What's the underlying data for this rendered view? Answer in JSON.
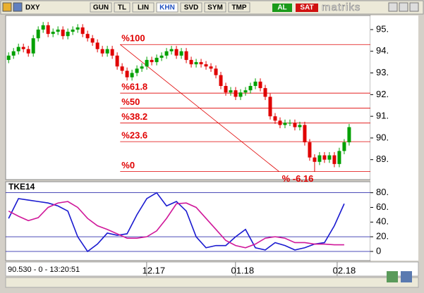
{
  "ui": {
    "symbol": "DXY",
    "buttons": [
      "GUN",
      "TL",
      "LIN",
      "KHN",
      "SVD",
      "SYM",
      "TMP"
    ],
    "buy": "AL",
    "sell": "SAT",
    "logo": "matriks",
    "status": "90.530 - 0 - 13:20:51"
  },
  "chart_data": [
    {
      "type": "candlestick",
      "up_color": "#00a000",
      "down_color": "#e00000",
      "xlim": [
        -0.6,
        73.3
      ],
      "ylim": [
        88.08,
        95.65
      ],
      "yticks": [
        {
          "value": 95,
          "label": "95."
        },
        {
          "value": 94,
          "label": "94."
        },
        {
          "value": 93,
          "label": "93."
        },
        {
          "value": 92,
          "label": "92."
        },
        {
          "value": 91,
          "label": "91."
        },
        {
          "value": 90,
          "label": "90."
        },
        {
          "value": 89,
          "label": "89."
        }
      ],
      "open": [
        93.6,
        93.8,
        94.0,
        94.2,
        94.1,
        93.9,
        94.6,
        95.0,
        95.2,
        94.8,
        94.9,
        95.0,
        94.7,
        94.9,
        95.0,
        95.1,
        94.8,
        94.6,
        94.4,
        94.1,
        93.9,
        94.1,
        93.8,
        93.3,
        93.1,
        92.8,
        93.0,
        93.2,
        93.3,
        93.6,
        93.5,
        93.7,
        93.8,
        94.0,
        94.1,
        93.8,
        94.0,
        93.6,
        93.4,
        93.5,
        93.4,
        93.3,
        93.2,
        92.9,
        92.4,
        92.1,
        92.2,
        91.9,
        92.1,
        92.2,
        92.4,
        92.6,
        92.3,
        91.9,
        91.0,
        90.8,
        90.6,
        90.7,
        90.7,
        90.5,
        90.6,
        89.8,
        89.1,
        88.9,
        89.2,
        89.0,
        89.2,
        88.8,
        89.4,
        89.8
      ],
      "high": [
        93.95,
        94.15,
        94.35,
        94.35,
        94.25,
        94.75,
        95.15,
        95.35,
        95.35,
        95.05,
        95.15,
        95.15,
        95.05,
        95.15,
        95.25,
        95.25,
        94.95,
        94.75,
        94.55,
        94.25,
        94.25,
        94.25,
        93.95,
        93.45,
        93.25,
        93.15,
        93.35,
        93.45,
        93.75,
        93.75,
        93.85,
        93.95,
        94.15,
        94.25,
        94.25,
        94.15,
        94.15,
        93.75,
        93.65,
        93.65,
        93.55,
        93.45,
        93.35,
        93.05,
        92.55,
        92.35,
        92.35,
        92.25,
        92.35,
        92.55,
        92.75,
        92.75,
        92.45,
        92.05,
        91.15,
        90.95,
        90.85,
        90.85,
        90.85,
        90.75,
        90.75,
        89.95,
        89.25,
        89.35,
        89.35,
        89.35,
        89.35,
        89.55,
        89.95,
        90.65
      ],
      "low": [
        93.45,
        93.65,
        93.85,
        93.95,
        93.75,
        93.75,
        94.45,
        94.85,
        94.65,
        94.65,
        94.75,
        94.55,
        94.55,
        94.75,
        94.85,
        94.65,
        94.45,
        94.25,
        93.95,
        93.75,
        93.75,
        93.65,
        93.15,
        92.95,
        92.65,
        92.65,
        92.85,
        93.05,
        93.15,
        93.35,
        93.35,
        93.55,
        93.65,
        93.85,
        93.65,
        93.65,
        93.45,
        93.25,
        93.25,
        93.25,
        93.15,
        93.05,
        92.75,
        92.25,
        91.95,
        91.95,
        91.75,
        91.75,
        91.95,
        92.05,
        92.25,
        92.15,
        91.75,
        90.85,
        90.65,
        90.45,
        90.45,
        90.55,
        90.35,
        90.35,
        89.65,
        88.95,
        88.45,
        88.75,
        88.85,
        88.85,
        88.65,
        88.65,
        89.25,
        89.65
      ],
      "close": [
        93.8,
        94.0,
        94.2,
        94.1,
        93.9,
        94.6,
        95.0,
        95.2,
        94.8,
        94.9,
        95.0,
        94.7,
        94.9,
        95.0,
        95.1,
        94.8,
        94.6,
        94.4,
        94.1,
        93.9,
        94.1,
        93.8,
        93.3,
        93.1,
        92.8,
        93.0,
        93.2,
        93.3,
        93.6,
        93.5,
        93.7,
        93.8,
        94.0,
        94.1,
        93.8,
        94.0,
        93.6,
        93.4,
        93.5,
        93.4,
        93.3,
        93.2,
        92.9,
        92.4,
        92.1,
        92.2,
        91.9,
        92.1,
        92.2,
        92.4,
        92.6,
        92.3,
        91.9,
        91.0,
        90.8,
        90.6,
        90.7,
        90.7,
        90.5,
        90.6,
        89.8,
        89.1,
        88.9,
        89.2,
        89.0,
        89.2,
        88.8,
        89.4,
        89.8,
        90.5
      ],
      "fibonacci": {
        "color": "#e00000",
        "x_start": 22.6,
        "x_end": 54.8,
        "levels": [
          {
            "label": "%100",
            "value": 94.31
          },
          {
            "label": "%61.8",
            "value": 92.07
          },
          {
            "label": "%50",
            "value": 91.38
          },
          {
            "label": "%38.2",
            "value": 90.69
          },
          {
            "label": "%23.6",
            "value": 89.83
          },
          {
            "label": "%0",
            "value": 88.45
          }
        ],
        "extension": {
          "label": "% -6.16",
          "value": 88.09
        }
      }
    },
    {
      "type": "line",
      "title": "TKE14",
      "xlim": [
        -0.6,
        73.3
      ],
      "ylim": [
        -12.5,
        95
      ],
      "yticks": [
        {
          "value": 80,
          "label": "80."
        },
        {
          "value": 60,
          "label": "60."
        },
        {
          "value": 40,
          "label": "40."
        },
        {
          "value": 20,
          "label": "20."
        },
        {
          "value": 0,
          "label": "0"
        }
      ],
      "xticks": [
        {
          "value": 29.4,
          "label": "12.17"
        },
        {
          "value": 47.4,
          "label": "01.18"
        },
        {
          "value": 68,
          "label": "02.18"
        }
      ],
      "level_lines": [
        80,
        20,
        0
      ],
      "level_color": "#1010a0",
      "x": [
        0,
        2,
        4,
        6,
        8,
        10,
        12,
        14,
        16,
        18,
        20,
        22,
        24,
        26,
        28,
        30,
        32,
        34,
        36,
        38,
        40,
        42,
        44,
        46,
        48,
        50,
        52,
        54,
        56,
        58,
        60,
        62,
        64,
        66,
        68
      ],
      "series": [
        {
          "color": "#1a1ad0",
          "values": [
            45,
            72,
            70,
            68,
            66,
            62,
            55,
            20,
            0,
            10,
            25,
            22,
            24,
            50,
            72,
            80,
            62,
            68,
            55,
            20,
            5,
            8,
            8,
            20,
            30,
            5,
            2,
            12,
            8,
            2,
            5,
            10,
            12,
            35,
            65
          ]
        },
        {
          "color": "#d0189a",
          "values": [
            55,
            48,
            42,
            46,
            60,
            66,
            68,
            60,
            45,
            35,
            30,
            24,
            18,
            18,
            20,
            28,
            45,
            65,
            66,
            60,
            45,
            30,
            15,
            8,
            5,
            10,
            18,
            20,
            18,
            12,
            12,
            10,
            10,
            9,
            9
          ]
        }
      ]
    }
  ]
}
